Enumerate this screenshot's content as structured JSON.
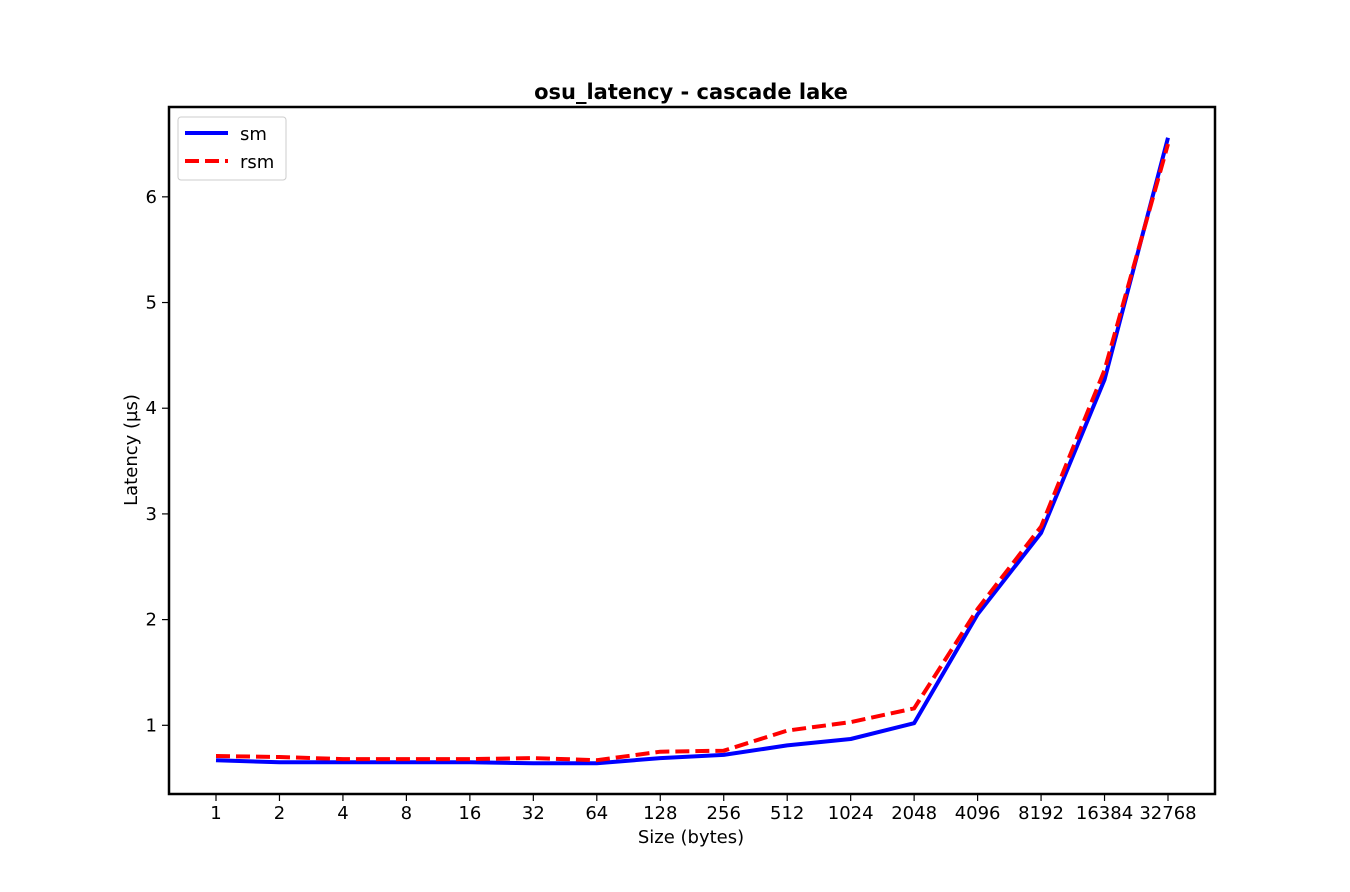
{
  "chart_data": {
    "type": "line",
    "title": "osu_latency - cascade lake",
    "xlabel": "Size (bytes)",
    "ylabel": "Latency (µs)",
    "categories": [
      "1",
      "2",
      "4",
      "8",
      "16",
      "32",
      "64",
      "128",
      "256",
      "512",
      "1024",
      "2048",
      "4096",
      "8192",
      "16384",
      "32768"
    ],
    "ylim": [
      0.35,
      6.85
    ],
    "yticks": [
      "1",
      "2",
      "3",
      "4",
      "5",
      "6"
    ],
    "grid": false,
    "legend_position": "top-left",
    "series": [
      {
        "name": "sm",
        "color": "#0000ff",
        "style": "solid",
        "values": [
          0.67,
          0.65,
          0.65,
          0.65,
          0.65,
          0.64,
          0.64,
          0.69,
          0.72,
          0.81,
          0.87,
          1.02,
          2.05,
          2.82,
          4.27,
          6.56
        ]
      },
      {
        "name": "rsm",
        "color": "#ff0000",
        "style": "dashed",
        "values": [
          0.71,
          0.7,
          0.68,
          0.68,
          0.68,
          0.69,
          0.67,
          0.75,
          0.76,
          0.95,
          1.03,
          1.16,
          2.1,
          2.88,
          4.36,
          6.5
        ]
      }
    ]
  }
}
